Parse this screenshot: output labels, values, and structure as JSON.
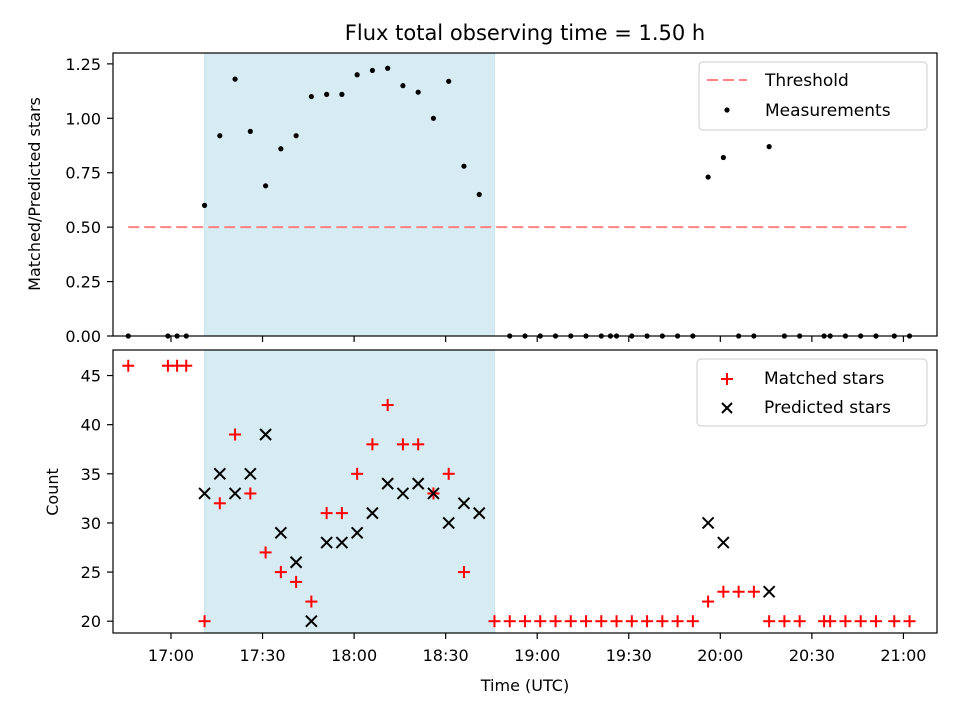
{
  "chart_data": [
    {
      "type": "scatter",
      "title": "Flux total observing time = 1.50 h",
      "xlabel": "",
      "ylabel": "Matched/Predicted stars",
      "xlim": [
        "16:41",
        "21:11"
      ],
      "ylim": [
        0,
        1.3
      ],
      "yticks": [
        "0.00",
        "0.25",
        "0.50",
        "0.75",
        "1.00",
        "1.25"
      ],
      "grid": false,
      "legend_position": "upper right",
      "shaded_interval": [
        "17:11",
        "18:46"
      ],
      "threshold": {
        "name": "Threshold",
        "value": 0.5,
        "x_range": [
          "16:46",
          "21:01"
        ],
        "color": "#ff8080",
        "style": "dashed"
      },
      "series": [
        {
          "name": "Measurements",
          "color": "#000000",
          "x": [
            "16:46",
            "16:59",
            "17:02",
            "17:05",
            "17:11",
            "17:16",
            "17:21",
            "17:26",
            "17:31",
            "17:36",
            "17:41",
            "17:46",
            "17:51",
            "17:56",
            "18:01",
            "18:06",
            "18:11",
            "18:16",
            "18:21",
            "18:26",
            "18:31",
            "18:36",
            "18:41",
            "18:51",
            "18:56",
            "19:01",
            "19:06",
            "19:11",
            "19:16",
            "19:21",
            "19:24",
            "19:26",
            "19:31",
            "19:36",
            "19:41",
            "19:46",
            "19:51",
            "19:56",
            "20:01",
            "20:06",
            "20:11",
            "20:16",
            "20:21",
            "20:26",
            "20:34",
            "20:36",
            "20:41",
            "20:46",
            "20:51",
            "20:57",
            "21:02"
          ],
          "y": [
            0,
            0,
            0,
            0,
            0.6,
            0.92,
            1.18,
            0.94,
            0.69,
            0.86,
            0.92,
            1.1,
            1.11,
            1.11,
            1.2,
            1.22,
            1.23,
            1.15,
            1.12,
            1.0,
            1.17,
            0.78,
            0.65,
            0,
            0,
            0,
            0,
            0,
            0,
            0,
            0,
            0,
            0,
            0,
            0,
            0,
            0,
            0.73,
            0.82,
            0,
            0,
            0.87,
            0,
            0,
            0,
            0,
            0,
            0,
            0,
            0,
            0
          ]
        }
      ]
    },
    {
      "type": "scatter",
      "title": "",
      "xlabel": "Time (UTC)",
      "ylabel": "Count",
      "xlim": [
        "16:41",
        "21:11"
      ],
      "ylim": [
        18.8,
        47.6
      ],
      "yticks": [
        "20",
        "25",
        "30",
        "35",
        "40",
        "45"
      ],
      "xticks": [
        "17:00",
        "17:30",
        "18:00",
        "18:30",
        "19:00",
        "19:30",
        "20:00",
        "20:30",
        "21:00"
      ],
      "grid": false,
      "legend_position": "upper right",
      "shaded_interval": [
        "17:11",
        "18:46"
      ],
      "series": [
        {
          "name": "Matched stars",
          "marker": "+",
          "color": "#ff0000",
          "x": [
            "16:46",
            "16:59",
            "17:02",
            "17:05",
            "17:11",
            "17:16",
            "17:21",
            "17:26",
            "17:31",
            "17:36",
            "17:41",
            "17:46",
            "17:51",
            "17:56",
            "18:01",
            "18:06",
            "18:11",
            "18:16",
            "18:21",
            "18:26",
            "18:31",
            "18:36",
            "18:46",
            "18:51",
            "18:56",
            "19:01",
            "19:06",
            "19:11",
            "19:16",
            "19:21",
            "19:26",
            "19:31",
            "19:36",
            "19:41",
            "19:46",
            "19:51",
            "19:56",
            "20:01",
            "20:06",
            "20:11",
            "20:16",
            "20:21",
            "20:26",
            "20:34",
            "20:36",
            "20:41",
            "20:46",
            "20:51",
            "20:57",
            "21:02"
          ],
          "y": [
            46,
            46,
            46,
            46,
            20,
            32,
            39,
            33,
            27,
            25,
            24,
            22,
            31,
            31,
            35,
            38,
            42,
            38,
            38,
            33,
            35,
            25,
            20,
            20,
            20,
            20,
            20,
            20,
            20,
            20,
            20,
            20,
            20,
            20,
            20,
            20,
            22,
            23,
            23,
            23,
            20,
            20,
            20,
            20,
            20,
            20,
            20,
            20,
            20,
            20
          ]
        },
        {
          "name": "Predicted stars",
          "marker": "x",
          "color": "#000000",
          "x": [
            "17:11",
            "17:16",
            "17:21",
            "17:26",
            "17:31",
            "17:36",
            "17:41",
            "17:46",
            "17:51",
            "17:56",
            "18:01",
            "18:06",
            "18:11",
            "18:16",
            "18:21",
            "18:26",
            "18:31",
            "18:36",
            "18:41",
            "19:56",
            "20:01",
            "20:16"
          ],
          "y": [
            33,
            35,
            33,
            35,
            39,
            29,
            26,
            20,
            28,
            28,
            29,
            31,
            34,
            33,
            34,
            33,
            30,
            32,
            31,
            30,
            28,
            23
          ]
        }
      ]
    }
  ]
}
